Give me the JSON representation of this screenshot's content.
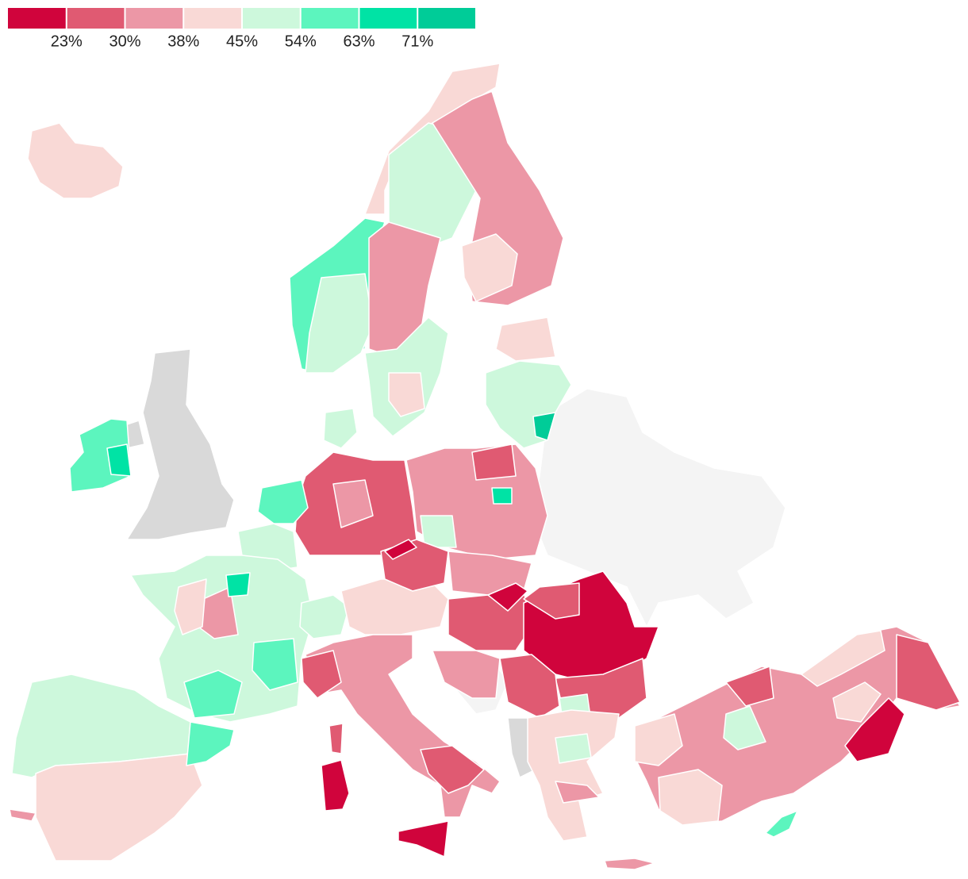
{
  "chart_data": {
    "type": "choropleth",
    "legend": {
      "colors": [
        "#d0043c",
        "#e05a72",
        "#ec97a6",
        "#f9d9d6",
        "#cdf8dc",
        "#5cf5be",
        "#00e3a5",
        "#00cc98"
      ],
      "ticks": [
        {
          "value": 23,
          "label": "23%"
        },
        {
          "value": 30,
          "label": "30%"
        },
        {
          "value": 38,
          "label": "38%"
        },
        {
          "value": 45,
          "label": "45%"
        },
        {
          "value": 54,
          "label": "54%"
        },
        {
          "value": 63,
          "label": "63%"
        },
        {
          "value": 71,
          "label": "71%"
        }
      ]
    },
    "no_data_color": "#d9d9d9",
    "outside_color": "#f4f4f4"
  }
}
